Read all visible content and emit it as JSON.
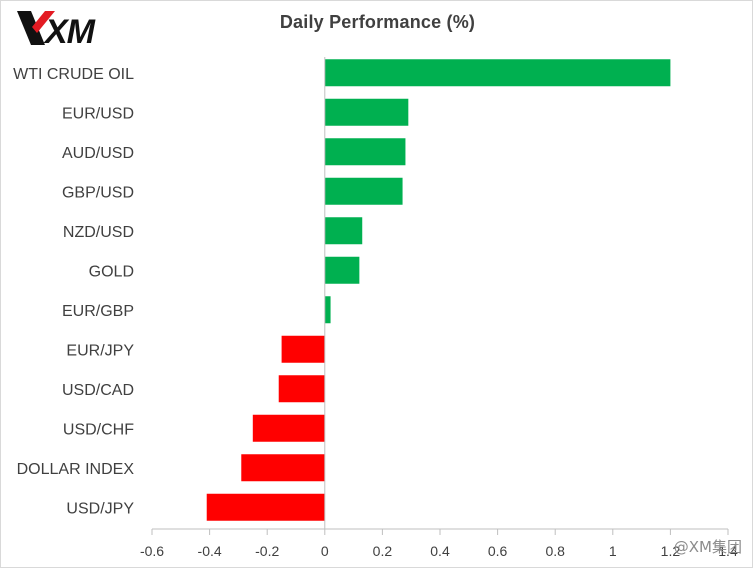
{
  "brand": {
    "logo_text": "XM"
  },
  "watermark": "@XM集团",
  "chart_data": {
    "type": "bar",
    "orientation": "horizontal",
    "title": "Daily Performance  (%)",
    "xlabel": "",
    "ylabel": "",
    "categories": [
      "WTI CRUDE OIL",
      "EUR/USD",
      "AUD/USD",
      "GBP/USD",
      "NZD/USD",
      "GOLD",
      "EUR/GBP",
      "EUR/JPY",
      "USD/CAD",
      "USD/CHF",
      "DOLLAR INDEX",
      "USD/JPY"
    ],
    "values": [
      1.2,
      0.29,
      0.28,
      0.27,
      0.13,
      0.12,
      0.02,
      -0.15,
      -0.16,
      -0.25,
      -0.29,
      -0.41
    ],
    "xlim": [
      -0.6,
      1.4
    ],
    "ticks": [
      "-0.6",
      "-0.4",
      "-0.2",
      "0",
      "0.2",
      "0.4",
      "0.6",
      "0.8",
      "1",
      "1.2",
      "1.4"
    ],
    "tick_values": [
      -0.6,
      -0.4,
      -0.2,
      0,
      0.2,
      0.4,
      0.6,
      0.8,
      1,
      1.2,
      1.4
    ],
    "grid": false,
    "colors": {
      "positive": "#00b050",
      "negative": "#ff0000",
      "axis": "#bfbfbf",
      "text": "#404040"
    }
  }
}
